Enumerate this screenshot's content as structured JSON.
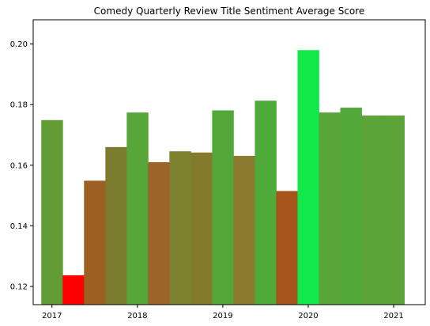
{
  "chart_data": {
    "type": "bar",
    "title": "Comedy Quarterly Review Title Sentiment Average Score",
    "xlabel": "",
    "ylabel": "",
    "xlim": [
      2016.78,
      2021.37
    ],
    "ylim": [
      0.114,
      0.208
    ],
    "x_ticks": [
      {
        "value": 2017,
        "label": "2017"
      },
      {
        "value": 2018,
        "label": "2018"
      },
      {
        "value": 2019,
        "label": "2019"
      },
      {
        "value": 2020,
        "label": "2020"
      },
      {
        "value": 2021,
        "label": "2021"
      }
    ],
    "y_ticks": [
      {
        "value": 0.12,
        "label": "0.12"
      },
      {
        "value": 0.14,
        "label": "0.14"
      },
      {
        "value": 0.16,
        "label": "0.16"
      },
      {
        "value": 0.18,
        "label": "0.18"
      },
      {
        "value": 0.2,
        "label": "0.20"
      }
    ],
    "grid": false,
    "legend": "none",
    "bars": [
      {
        "x": 2017.0,
        "value": 0.1749,
        "color": "#619c34"
      },
      {
        "x": 2017.25,
        "value": 0.1237,
        "color": "#ff0000"
      },
      {
        "x": 2017.5,
        "value": 0.1549,
        "color": "#9e5f22"
      },
      {
        "x": 2017.75,
        "value": 0.166,
        "color": "#7b7b2e"
      },
      {
        "x": 2018.0,
        "value": 0.1774,
        "color": "#58a63a"
      },
      {
        "x": 2018.25,
        "value": 0.161,
        "color": "#9b6428"
      },
      {
        "x": 2018.5,
        "value": 0.1646,
        "color": "#7d8230"
      },
      {
        "x": 2018.75,
        "value": 0.1642,
        "color": "#837a2e"
      },
      {
        "x": 2019.0,
        "value": 0.1781,
        "color": "#53a738"
      },
      {
        "x": 2019.25,
        "value": 0.1631,
        "color": "#8c7a2e"
      },
      {
        "x": 2019.5,
        "value": 0.1813,
        "color": "#4eab3a"
      },
      {
        "x": 2019.75,
        "value": 0.1515,
        "color": "#a7541d"
      },
      {
        "x": 2020.0,
        "value": 0.198,
        "color": "#12e84a"
      },
      {
        "x": 2020.25,
        "value": 0.1774,
        "color": "#58a63a"
      },
      {
        "x": 2020.5,
        "value": 0.179,
        "color": "#52a93a"
      },
      {
        "x": 2020.75,
        "value": 0.1764,
        "color": "#5ca338"
      },
      {
        "x": 2021.0,
        "value": 0.1764,
        "color": "#5ca338"
      }
    ],
    "bar_width": 0.25
  }
}
